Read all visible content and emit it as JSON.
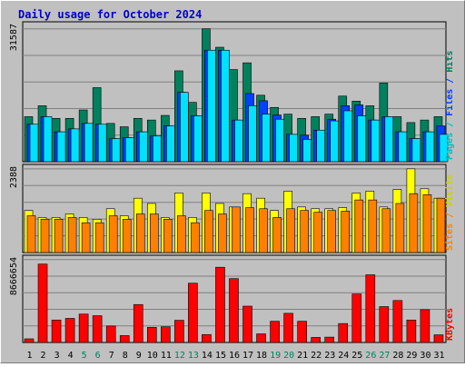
{
  "chart_data": [
    {
      "type": "bar",
      "title": "Daily usage for October 2024",
      "ylabel": "Pages / Files / Hits",
      "y_tick_label": "31587",
      "ylim": [
        0,
        31587
      ],
      "grid": true,
      "categories": [
        "1",
        "2",
        "3",
        "4",
        "5",
        "6",
        "7",
        "8",
        "9",
        "10",
        "11",
        "12",
        "13",
        "14",
        "15",
        "16",
        "17",
        "18",
        "19",
        "20",
        "21",
        "22",
        "23",
        "24",
        "25",
        "26",
        "27",
        "28",
        "29",
        "30",
        "31"
      ],
      "series": [
        {
          "name": "Hits",
          "color": "#00805c",
          "values": [
            10700,
            13300,
            10300,
            10300,
            12300,
            17600,
            9100,
            8300,
            10300,
            9900,
            11000,
            21600,
            14100,
            31587,
            27200,
            21900,
            23500,
            15800,
            12900,
            11300,
            10300,
            10700,
            11300,
            15600,
            14400,
            13300,
            18700,
            10700,
            9300,
            9900,
            10700
          ]
        },
        {
          "name": "Files",
          "color": "#0040ff",
          "values": [
            8900,
            10700,
            7100,
            7800,
            9100,
            8900,
            5500,
            5700,
            7100,
            6100,
            8500,
            16500,
            10900,
            26500,
            26500,
            9900,
            16200,
            14500,
            11100,
            6500,
            6300,
            7500,
            10100,
            13300,
            13500,
            9900,
            10700,
            7100,
            5500,
            7100,
            8500
          ]
        },
        {
          "name": "Pages",
          "color": "#00e0ff",
          "values": [
            8900,
            10700,
            7100,
            7800,
            9100,
            8900,
            5500,
            5700,
            7100,
            6100,
            8500,
            16500,
            10900,
            26500,
            26500,
            9900,
            13300,
            11300,
            10100,
            6500,
            5300,
            7500,
            9700,
            12100,
            10900,
            9900,
            10700,
            7100,
            5500,
            7100,
            6500
          ]
        }
      ]
    },
    {
      "type": "bar",
      "ylabel": "Sites / Visits",
      "y_tick_label": "2388",
      "ylim": [
        0,
        2388
      ],
      "grid": true,
      "categories": [
        "1",
        "2",
        "3",
        "4",
        "5",
        "6",
        "7",
        "8",
        "9",
        "10",
        "11",
        "12",
        "13",
        "14",
        "15",
        "16",
        "17",
        "18",
        "19",
        "20",
        "21",
        "22",
        "23",
        "24",
        "25",
        "26",
        "27",
        "28",
        "29",
        "30",
        "31"
      ],
      "series": [
        {
          "name": "Visits",
          "color": "#ffff00",
          "values": [
            1200,
            1000,
            1000,
            1100,
            1000,
            950,
            1250,
            1050,
            1550,
            1400,
            1000,
            1700,
            1000,
            1700,
            1400,
            1300,
            1680,
            1550,
            1200,
            1750,
            1300,
            1250,
            1250,
            1280,
            1700,
            1750,
            1300,
            1800,
            2388,
            1820,
            1550
          ]
        },
        {
          "name": "Sites",
          "color": "#ff8000",
          "values": [
            1050,
            950,
            950,
            1000,
            850,
            850,
            1050,
            950,
            1100,
            1100,
            950,
            1050,
            850,
            1200,
            1100,
            1300,
            1280,
            1250,
            1000,
            1250,
            1200,
            1150,
            1200,
            1180,
            1500,
            1500,
            1250,
            1400,
            1680,
            1650,
            1550
          ]
        }
      ]
    },
    {
      "type": "bar",
      "ylabel": "KBytes",
      "y_tick_label": "8666654",
      "ylim": [
        0,
        8666654
      ],
      "grid": true,
      "categories": [
        "1",
        "2",
        "3",
        "4",
        "5",
        "6",
        "7",
        "8",
        "9",
        "10",
        "11",
        "12",
        "13",
        "14",
        "15",
        "16",
        "17",
        "18",
        "19",
        "20",
        "21",
        "22",
        "23",
        "24",
        "25",
        "26",
        "27",
        "28",
        "29",
        "30",
        "31"
      ],
      "series": [
        {
          "name": "KBytes",
          "color": "#ff0000",
          "values": [
            380000,
            8200000,
            2350000,
            2520000,
            2970000,
            2800000,
            1720000,
            720000,
            3970000,
            1580000,
            1640000,
            2320000,
            6200000,
            830000,
            7870000,
            6680000,
            3800000,
            900000,
            2220000,
            3050000,
            2220000,
            530000,
            560000,
            1980000,
            5070000,
            7080000,
            3750000,
            4390000,
            2350000,
            3430000,
            800000
          ]
        }
      ]
    }
  ],
  "weekend_days": [
    "5",
    "6",
    "12",
    "13",
    "19",
    "20",
    "26",
    "27"
  ],
  "colors": {
    "weekday_label": "#000000",
    "weekend_label": "#00805c",
    "title": "#0000cc"
  }
}
